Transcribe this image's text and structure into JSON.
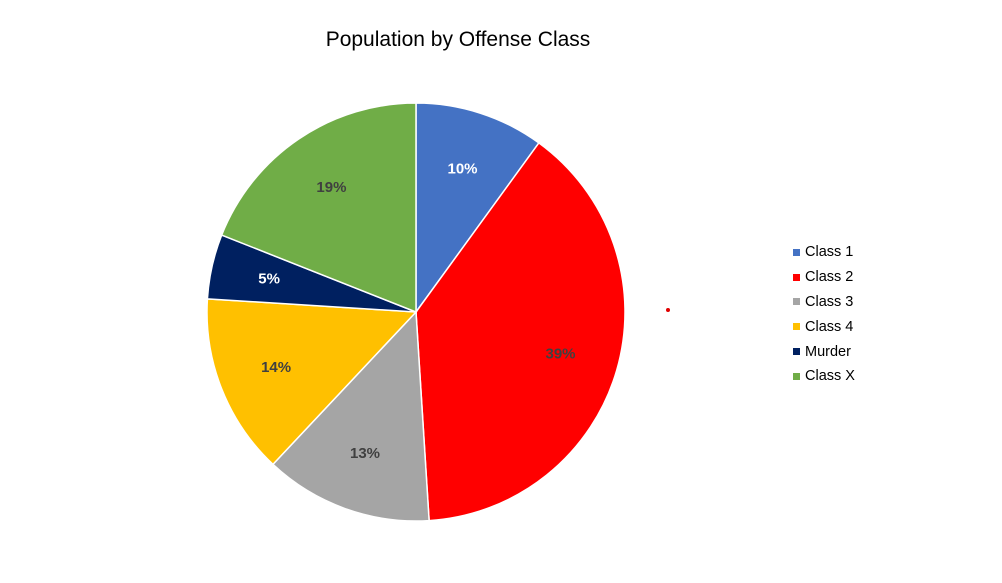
{
  "chart_data": {
    "type": "pie",
    "title": "Population by Offense Class",
    "slices": [
      {
        "name": "Class 1",
        "value": 10,
        "label": "10%",
        "color": "#4472C4",
        "label_color": "#ffffff"
      },
      {
        "name": "Class 2",
        "value": 39,
        "label": "39%",
        "color": "#FF0000",
        "label_color": "#404040"
      },
      {
        "name": "Class 3",
        "value": 13,
        "label": "13%",
        "color": "#A5A5A5",
        "label_color": "#404040"
      },
      {
        "name": "Class 4",
        "value": 14,
        "label": "14%",
        "color": "#FFC000",
        "label_color": "#404040"
      },
      {
        "name": "Murder",
        "value": 5,
        "label": "5%",
        "color": "#002060",
        "label_color": "#ffffff"
      },
      {
        "name": "Class X",
        "value": 19,
        "label": "19%",
        "color": "#70AD47",
        "label_color": "#404040"
      }
    ],
    "legend_position": "right"
  }
}
